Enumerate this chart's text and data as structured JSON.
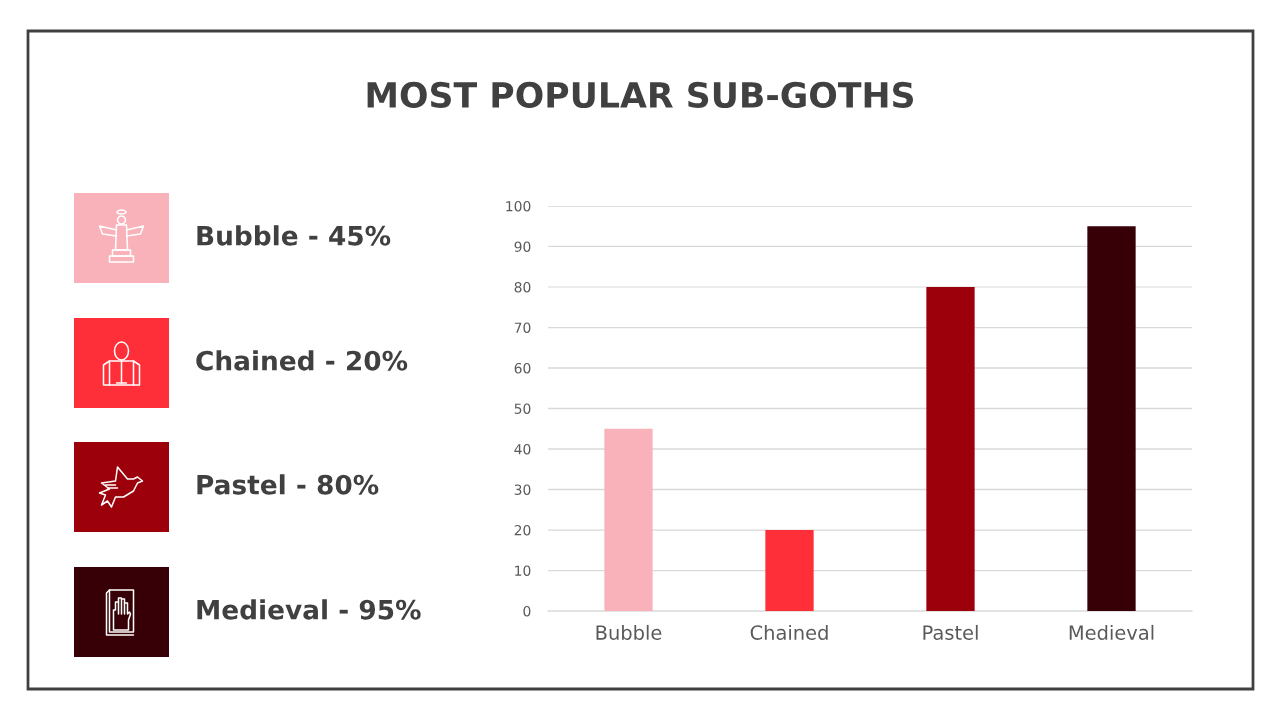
{
  "chart_data": [
    {
      "type": "other",
      "title": "MOST POPULAR SUB-GOTHS",
      "annotations": [
        "Bubble - 45%",
        "Chained - 20%",
        "Pastel - 80%",
        "Medieval - 95%"
      ]
    },
    {
      "type": "bar",
      "categories": [
        "Bubble",
        "Chained",
        "Pastel",
        "Medieval"
      ],
      "values": [
        45,
        20,
        80,
        95
      ],
      "colors": [
        "#f9b2b9",
        "#fe2f38",
        "#9b000b",
        "#360006"
      ],
      "ylim": [
        0,
        100
      ],
      "yticks": [
        0,
        10,
        20,
        30,
        40,
        50,
        60,
        70,
        80,
        90,
        100
      ],
      "grid": "y"
    }
  ]
}
